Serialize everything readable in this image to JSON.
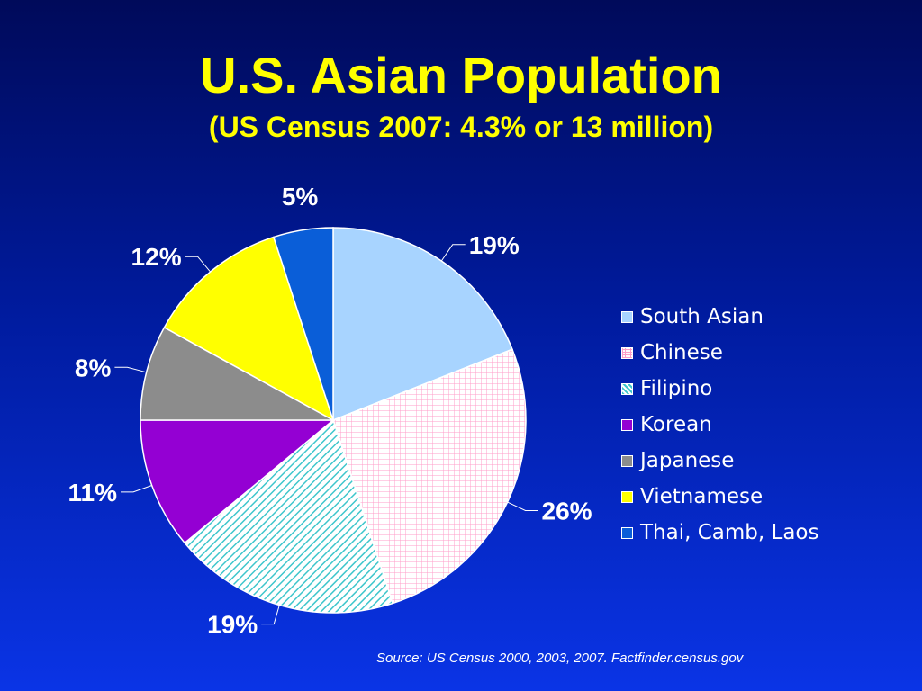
{
  "title": "U.S. Asian Population",
  "subtitle": "(US Census 2007: 4.3% or 13 million)",
  "source": "Source: US Census 2000, 2003, 2007. Factfinder.census.gov",
  "chart_data": {
    "type": "pie",
    "legend_position": "right",
    "slices": [
      {
        "name": "South Asian",
        "value": 19,
        "label": "19%",
        "color": "#a8d4ff",
        "pattern": "solid"
      },
      {
        "name": "Chinese",
        "value": 26,
        "label": "26%",
        "color": "#ffffff",
        "pattern": "grid",
        "pattern_color": "#ff9ec8"
      },
      {
        "name": "Filipino",
        "value": 19,
        "label": "19%",
        "color": "#ffffff",
        "pattern": "diagonal",
        "pattern_color": "#3ec6cc"
      },
      {
        "name": "Korean",
        "value": 11,
        "label": "11%",
        "color": "#9400d3",
        "pattern": "solid"
      },
      {
        "name": "Japanese",
        "value": 8,
        "label": "8%",
        "color": "#8c8c8c",
        "pattern": "solid"
      },
      {
        "name": "Vietnamese",
        "value": 12,
        "label": "12%",
        "color": "#ffff00",
        "pattern": "solid"
      },
      {
        "name": "Thai, Camb, Laos",
        "value": 5,
        "label": "5%",
        "color": "#0a5ed8",
        "pattern": "solid"
      }
    ]
  }
}
